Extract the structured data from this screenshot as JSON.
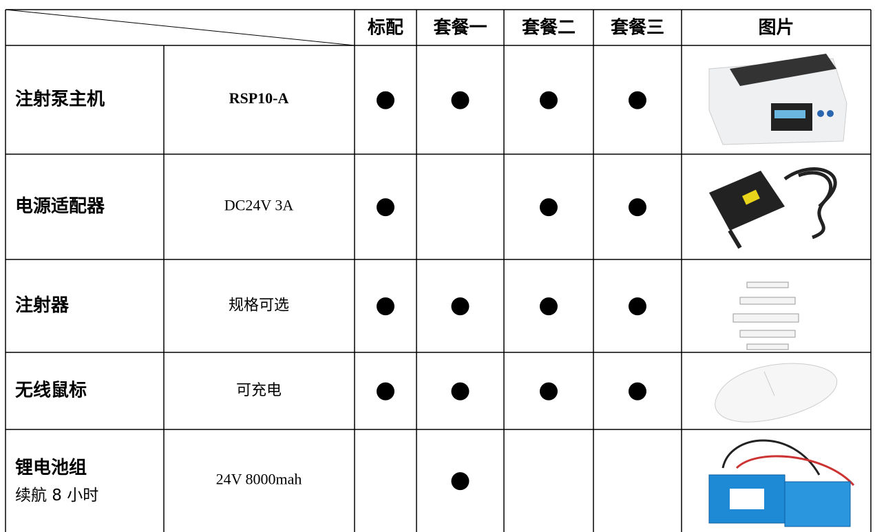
{
  "table": {
    "header": [
      "标配",
      "套餐一",
      "套餐二",
      "套餐三",
      "图片"
    ],
    "rows": [
      {
        "name": "注射泵主机",
        "spec": "RSP10-A",
        "marks": [
          "●",
          "●",
          "●",
          "●"
        ]
      },
      {
        "name": "电源适配器",
        "spec": "DC24V 3A",
        "marks": [
          "●",
          null,
          "●",
          "●"
        ]
      },
      {
        "name": "注射器",
        "spec": "规格可选",
        "marks": [
          "●",
          "●",
          "●",
          "●"
        ]
      },
      {
        "name": "无线鼠标",
        "spec": "可充电",
        "marks": [
          "●",
          "●",
          "●",
          "●"
        ]
      },
      {
        "name": "锂电池组",
        "note": "续航 8 小时",
        "spec": "24V 8000mah",
        "marks": [
          null,
          "●",
          null,
          null
        ]
      }
    ]
  }
}
